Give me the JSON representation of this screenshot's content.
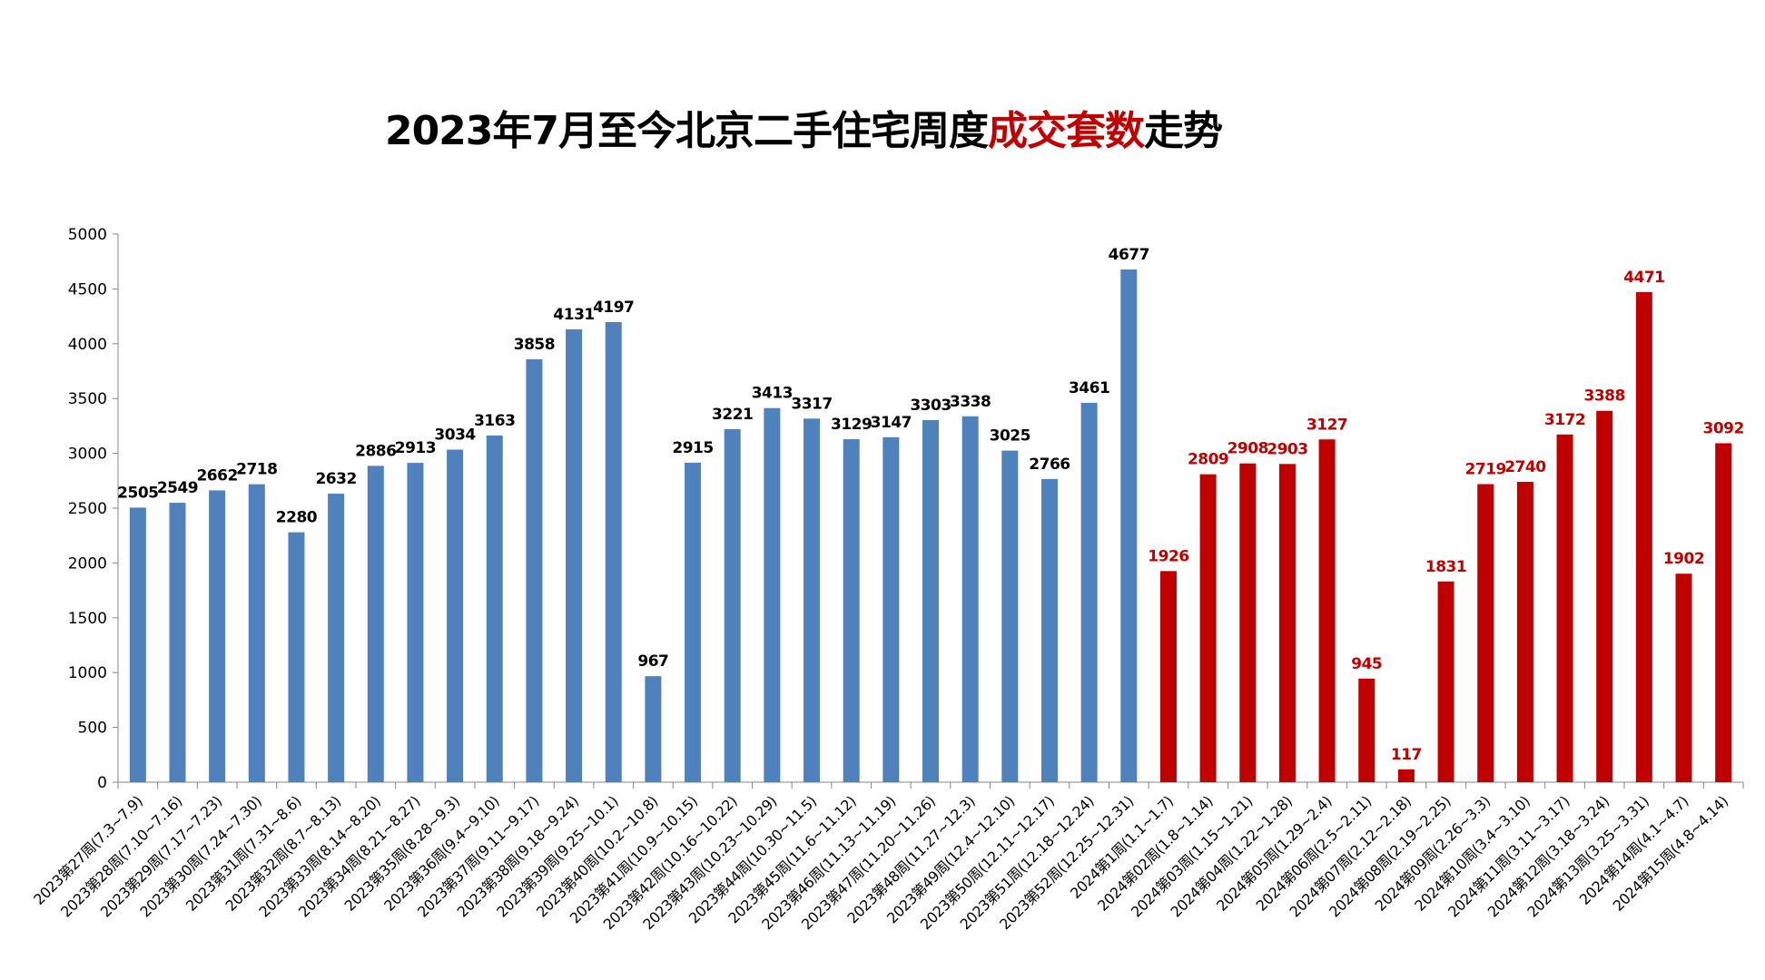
{
  "title": {
    "part1": "2023年7月至今北京二手住宅周度",
    "highlight": "成交套数",
    "part2": "走势"
  },
  "colors": {
    "series_2023": "#4f81bd",
    "series_2024": "#c00000",
    "highlight_text": "#c00000"
  },
  "chart_data": {
    "type": "bar",
    "title": "2023年7月至今北京二手住宅周度成交套数走势",
    "xlabel": "",
    "ylabel": "",
    "ylim": [
      0,
      5000
    ],
    "yticks": [
      0,
      500,
      1000,
      1500,
      2000,
      2500,
      3000,
      3500,
      4000,
      4500,
      5000
    ],
    "grid": false,
    "categories": [
      "2023第27周(7.3~7.9)",
      "2023第28周(7.10~7.16)",
      "2023第29周(7.17~7.23)",
      "2023第30周(7.24~7.30)",
      "2023第31周(7.31~8.6)",
      "2023第32周(8.7~8.13)",
      "2023第33周(8.14~8.20)",
      "2023第34周(8.21~8.27)",
      "2023第35周(8.28~9.3)",
      "2023第36周(9.4~9.10)",
      "2023第37周(9.11~9.17)",
      "2023第38周(9.18~9.24)",
      "2023第39周(9.25~10.1)",
      "2023第40周(10.2~10.8)",
      "2023第41周(10.9~10.15)",
      "2023第42周(10.16~10.22)",
      "2023第43周(10.23~10.29)",
      "2023第44周(10.30~11.5)",
      "2023第45周(11.6~11.12)",
      "2023第46周(11.13~11.19)",
      "2023第47周(11.20~11.26)",
      "2023第48周(11.27~12.3)",
      "2023第49周(12.4~12.10)",
      "2023第50周(12.11~12.17)",
      "2023第51周(12.18~12.24)",
      "2023第52周(12.25~12.31)",
      "2024第1周(1.1~1.7)",
      "2024第02周(1.8~1.14)",
      "2024第03周(1.15~1.21)",
      "2024第04周(1.22~1.28)",
      "2024第05周(1.29~2.4)",
      "2024第06周(2.5~2.11)",
      "2024第07周(2.12~2.18)",
      "2024第08周(2.19~2.25)",
      "2024第09周(2.26~3.3)",
      "2024第10周(3.4~3.10)",
      "2024第11周(3.11~3.17)",
      "2024第12周(3.18~3.24)",
      "2024第13周(3.25~3.31)",
      "2024第14周(4.1~4.7)",
      "2024第15周(4.8~4.14)"
    ],
    "values": [
      2505,
      2549,
      2662,
      2718,
      2280,
      2632,
      2886,
      2913,
      3034,
      3163,
      3858,
      4131,
      4197,
      967,
      2915,
      3221,
      3413,
      3317,
      3129,
      3147,
      3303,
      3338,
      3025,
      2766,
      3461,
      4677,
      1926,
      2809,
      2908,
      2903,
      3127,
      945,
      117,
      1831,
      2719,
      2740,
      3172,
      3388,
      4471,
      1902,
      3092
    ],
    "series_color_groups": {
      "2023": "#4f81bd",
      "2024": "#c00000"
    }
  }
}
